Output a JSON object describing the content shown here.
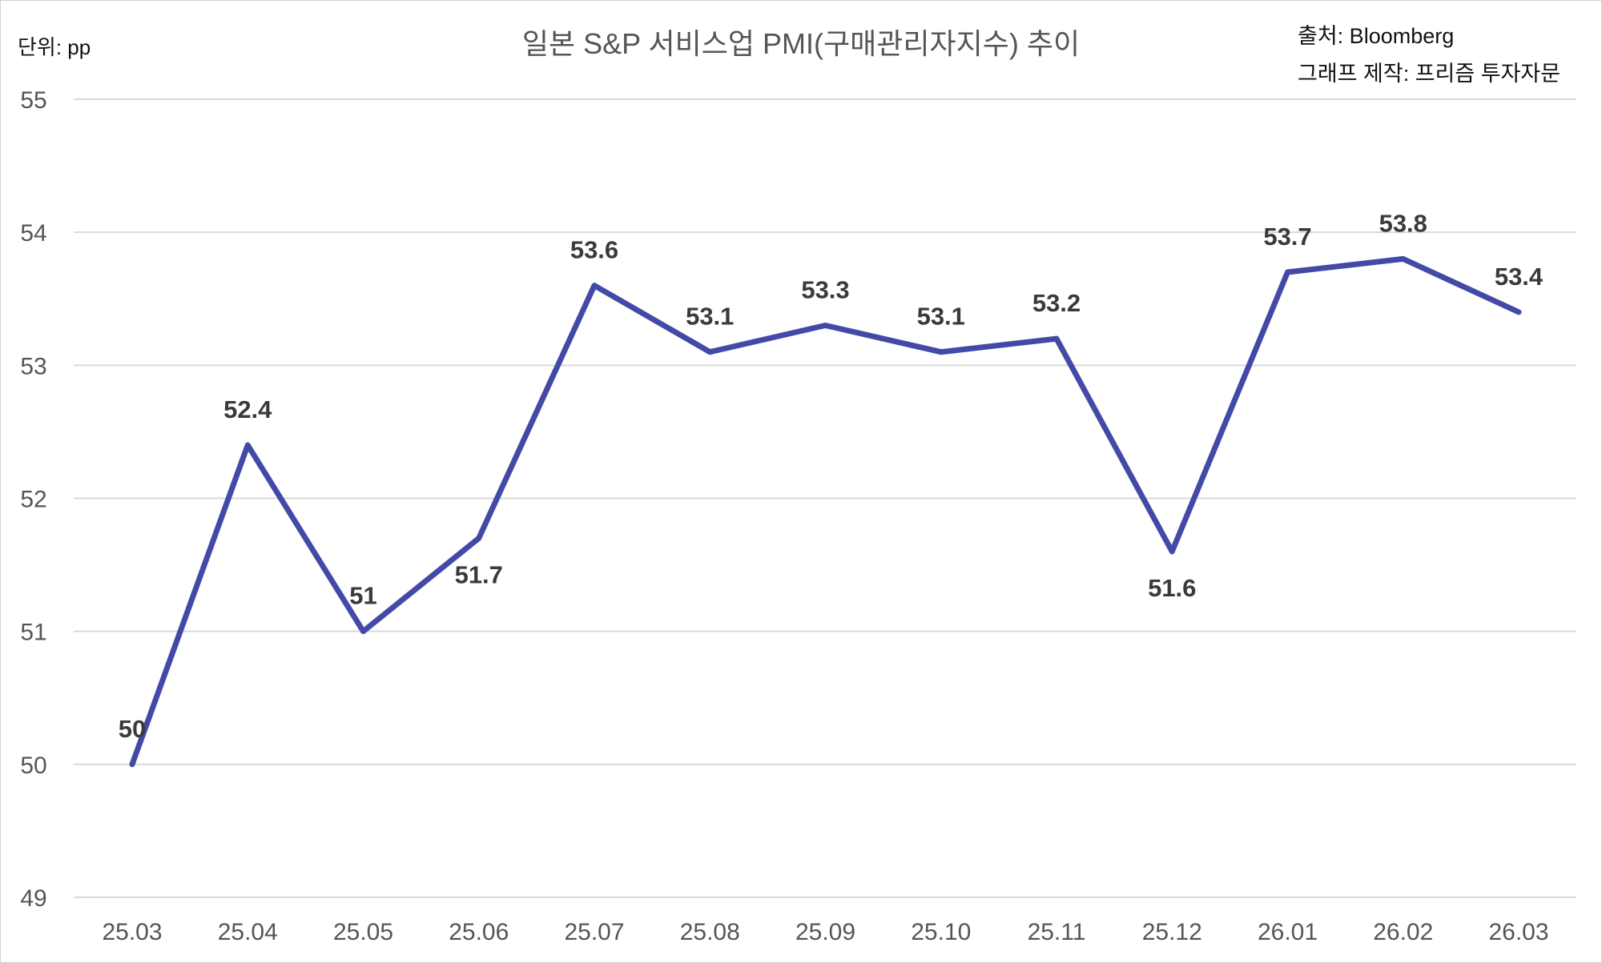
{
  "header": {
    "unit": "단위: pp",
    "source": "출처: Bloomberg",
    "credit": "그래프 제작: 프리즘 투자자문"
  },
  "chart_data": {
    "type": "line",
    "title": "일본 S&P 서비스업 PMI(구매관리자지수) 추이",
    "xlabel": "",
    "ylabel": "",
    "categories": [
      "25.03",
      "25.04",
      "25.05",
      "25.06",
      "25.07",
      "25.08",
      "25.09",
      "25.10",
      "25.11",
      "25.12",
      "26.01",
      "26.02",
      "26.03"
    ],
    "series": [
      {
        "name": "일본 S&P 서비스업 PMI",
        "values": [
          50,
          52.4,
          51,
          51.7,
          53.6,
          53.1,
          53.3,
          53.1,
          53.2,
          51.6,
          53.7,
          53.8,
          53.4
        ],
        "color": "#4349a6"
      }
    ],
    "data_label_position": [
      "above",
      "above",
      "above",
      "below",
      "above",
      "above",
      "above",
      "above",
      "above",
      "below",
      "above",
      "above",
      "above"
    ],
    "ylim": [
      49,
      55
    ],
    "yticks": [
      "49",
      "50",
      "51",
      "52",
      "53",
      "54",
      "55"
    ],
    "grid": true,
    "legend": "none"
  }
}
